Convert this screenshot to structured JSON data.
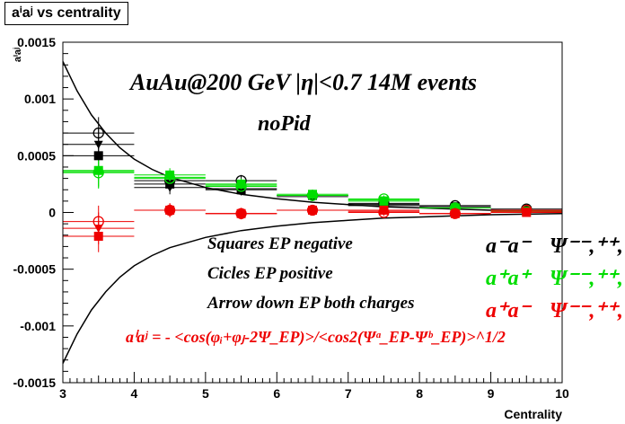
{
  "title": "aⁱaʲ vs centrality",
  "chart_data": {
    "type": "scatter",
    "xlabel": "Centrality",
    "ylabel": "aⁱaʲ",
    "xlim": [
      3,
      10
    ],
    "ylim": [
      -0.0015,
      0.0015
    ],
    "xticks": [
      3,
      4,
      5,
      6,
      7,
      8,
      9,
      10
    ],
    "yticks": [
      -0.0015,
      -0.001,
      -0.0005,
      0,
      0.0005,
      0.001,
      0.0015
    ],
    "ytick_labels": [
      "-0.0015",
      "-0.001",
      "-0.0005",
      "0",
      "0.0005",
      "0.001",
      "0.0015"
    ],
    "grid": false,
    "series": [
      {
        "name": "a⁻a⁻ Ψ⁻⁻ (squares, EP negative)",
        "color": "#000000",
        "marker": "square",
        "x": [
          3.5,
          4.5,
          5.5,
          6.5,
          7.5,
          8.5,
          9.5
        ],
        "y": [
          0.0005,
          0.00025,
          0.0002,
          0.00015,
          7e-05,
          5e-05,
          2e-05
        ]
      },
      {
        "name": "a⁻a⁻ circles, EP positive",
        "color": "#000000",
        "marker": "circle-open",
        "x": [
          3.5,
          4.5,
          5.5,
          6.5,
          7.5,
          8.5,
          9.5
        ],
        "y": [
          0.0007,
          0.00028,
          0.00028,
          0.00015,
          8e-05,
          6e-05,
          3e-05
        ]
      },
      {
        "name": "a⁻a⁻ arrow down, EP both charges",
        "color": "#000000",
        "marker": "triangle-down",
        "x": [
          3.5,
          4.5,
          5.5,
          6.5,
          7.5,
          8.5,
          9.5
        ],
        "y": [
          0.0006,
          0.00022,
          0.00021,
          0.00014,
          6e-05,
          4e-05,
          2e-05
        ]
      },
      {
        "name": "a⁺a⁺ Ψ⁺⁺ (squares, EP negative)",
        "color": "#00dd00",
        "marker": "square",
        "x": [
          3.5,
          4.5,
          5.5,
          6.5,
          7.5,
          8.5,
          9.5
        ],
        "y": [
          0.00037,
          0.00033,
          0.00025,
          0.00016,
          0.0001,
          4e-05,
          1e-05
        ]
      },
      {
        "name": "a⁺a⁺ circles, EP positive",
        "color": "#00dd00",
        "marker": "circle-open",
        "x": [
          3.5,
          4.5,
          5.5,
          6.5,
          7.5,
          8.5,
          9.5
        ],
        "y": [
          0.00035,
          0.0003,
          0.00023,
          0.00015,
          0.00012,
          4e-05,
          2e-05
        ]
      },
      {
        "name": "a⁺a⁺ arrow down, EP both charges",
        "color": "#00dd00",
        "marker": "triangle-down",
        "x": [
          3.5,
          4.5,
          5.5,
          6.5,
          7.5,
          8.5,
          9.5
        ],
        "y": [
          0.00036,
          0.00031,
          0.00024,
          0.00015,
          0.00011,
          4e-05,
          1e-05
        ]
      },
      {
        "name": "a⁺a⁻ Ψ⁺⁻ (squares, EP negative)",
        "color": "#ee0000",
        "marker": "square",
        "x": [
          3.5,
          4.5,
          5.5,
          6.5,
          7.5,
          8.5,
          9.5
        ],
        "y": [
          -0.00021,
          2e-05,
          -1e-05,
          2e-05,
          2e-05,
          -1e-05,
          0.0
        ]
      },
      {
        "name": "a⁺a⁻ circles, EP positive",
        "color": "#ee0000",
        "marker": "circle-open",
        "x": [
          3.5,
          4.5,
          5.5,
          6.5,
          7.5,
          8.5,
          9.5
        ],
        "y": [
          -8e-05,
          2e-05,
          -1e-05,
          2e-05,
          0.0,
          -1e-05,
          2e-05
        ]
      },
      {
        "name": "a⁺a⁻ arrow down, EP both charges",
        "color": "#ee0000",
        "marker": "triangle-down",
        "x": [
          3.5,
          4.5,
          5.5,
          6.5,
          7.5,
          8.5,
          9.5
        ],
        "y": [
          -0.00014,
          2e-05,
          -1e-05,
          2e-05,
          1e-05,
          -1e-05,
          1e-05
        ]
      }
    ],
    "error_bars": [
      0.00014,
      6e-05,
      5e-05,
      4e-05,
      3e-05,
      3e-05,
      2e-05
    ],
    "reference_curves": {
      "color": "#000000",
      "x": [
        3.0,
        3.2,
        3.4,
        3.6,
        3.8,
        4.0,
        4.25,
        4.5,
        5.0,
        5.5,
        6.0,
        6.5,
        7.0,
        7.5,
        8.0,
        8.5,
        9.0,
        9.5,
        10.0
      ],
      "upper": [
        0.00133,
        0.00107,
        0.00086,
        0.0007,
        0.00057,
        0.00047,
        0.00038,
        0.00031,
        0.00022,
        0.00016,
        0.00012,
        9e-05,
        7e-05,
        5e-05,
        4e-05,
        3e-05,
        2e-05,
        1.5e-05,
        1e-05
      ],
      "lower": [
        -0.00133,
        -0.00107,
        -0.00086,
        -0.0007,
        -0.00057,
        -0.00047,
        -0.00038,
        -0.00031,
        -0.00022,
        -0.00016,
        -0.00012,
        -9e-05,
        -7e-05,
        -5e-05,
        -4e-05,
        -3e-05,
        -2e-05,
        -1.5e-05,
        -1e-05
      ]
    },
    "annotations": {
      "header": "AuAu@200 GeV |η|<0.7 14M events",
      "subheader": "noPid",
      "note1": "Squares EP negative",
      "note2": "Cicles EP positive",
      "note3": "Arrow down EP both charges"
    },
    "legend": [
      {
        "pair": "a⁻a⁻",
        "psi": "Ψ⁻⁻,⁺⁺,⁺⁻",
        "color": "#000000"
      },
      {
        "pair": "a⁺a⁺",
        "psi": "Ψ⁻⁻,⁺⁺,⁺⁻",
        "color": "#00dd00"
      },
      {
        "pair": "a⁺a⁻",
        "psi": "Ψ⁻⁻,⁺⁺,⁺⁻",
        "color": "#ee0000"
      }
    ],
    "formula": "aⁱaʲ = - <cos(φᵢ+φⱼ-2Ψ_EP)>/<cos2(Ψᵃ_EP-Ψᵇ_EP)>^1/2"
  }
}
